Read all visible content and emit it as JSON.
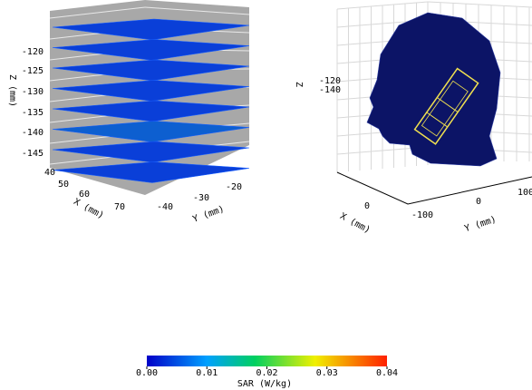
{
  "left_plot": {
    "z_label": "Z (mm)",
    "z_ticks": [
      "-120",
      "-125",
      "-130",
      "-135",
      "-140",
      "-145"
    ],
    "x_label": "X (mm)",
    "x_ticks": [
      "40",
      "50",
      "60",
      "70"
    ],
    "y_label": "Y (mm)",
    "y_ticks": [
      "-40",
      "-30",
      "-20"
    ]
  },
  "right_plot": {
    "z_label": "Z",
    "z_ticks": [
      "-120",
      "-140"
    ],
    "x_label": "X (mm)",
    "x_ticks": [
      "0"
    ],
    "y_label": "Y (mm)",
    "y_ticks": [
      "-100",
      "0",
      "100"
    ]
  },
  "colorbar": {
    "label": "SAR (W/kg)",
    "ticks": [
      "0.00",
      "0.01",
      "0.02",
      "0.03",
      "0.04"
    ]
  }
}
